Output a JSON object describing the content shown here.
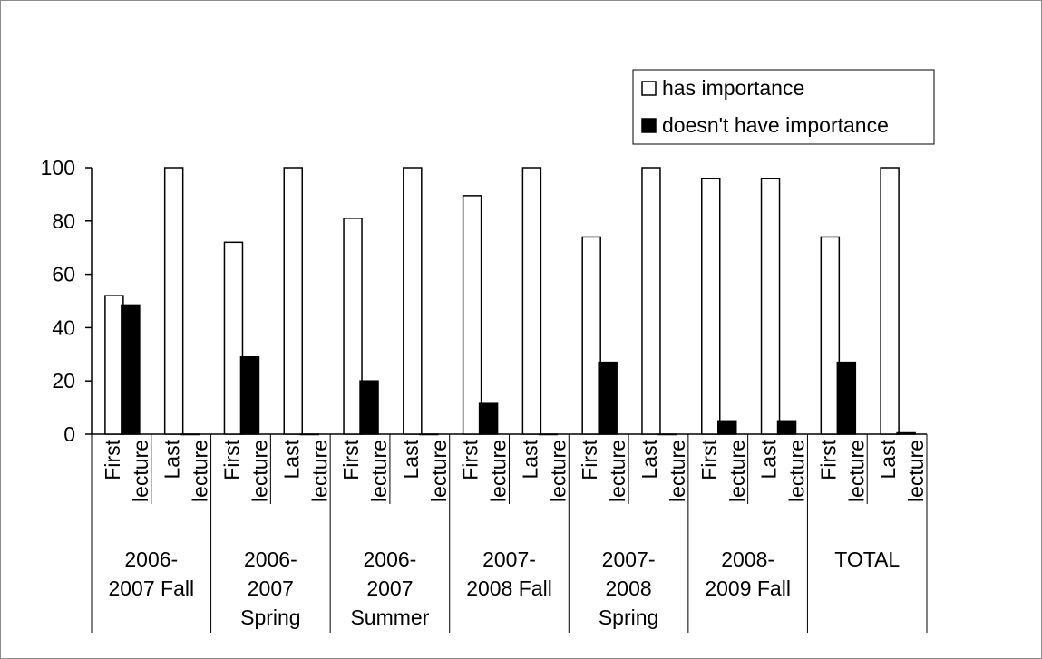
{
  "chart_data": {
    "type": "bar",
    "ylim": [
      0,
      100
    ],
    "yticks": [
      0,
      20,
      40,
      60,
      80,
      100
    ],
    "groups": [
      {
        "label_lines": [
          "2006-",
          "2007 Fall"
        ],
        "subcategories": [
          {
            "line1": "First",
            "line2": "lecture"
          },
          {
            "line1": "Last",
            "line2": "lecture"
          }
        ]
      },
      {
        "label_lines": [
          "2006-",
          "2007",
          "Spring"
        ],
        "subcategories": [
          {
            "line1": "First",
            "line2": "lecture"
          },
          {
            "line1": "Last",
            "line2": "lecture"
          }
        ]
      },
      {
        "label_lines": [
          "2006-",
          "2007",
          "Summer"
        ],
        "subcategories": [
          {
            "line1": "First",
            "line2": "lecture"
          },
          {
            "line1": "Last",
            "line2": "lecture"
          }
        ]
      },
      {
        "label_lines": [
          "2007-",
          "2008 Fall"
        ],
        "subcategories": [
          {
            "line1": "First",
            "line2": "lecture"
          },
          {
            "line1": "Last",
            "line2": "lecture"
          }
        ]
      },
      {
        "label_lines": [
          "2007-",
          "2008",
          "Spring"
        ],
        "subcategories": [
          {
            "line1": "First",
            "line2": "lecture"
          },
          {
            "line1": "Last",
            "line2": "lecture"
          }
        ]
      },
      {
        "label_lines": [
          "2008-",
          "2009 Fall"
        ],
        "subcategories": [
          {
            "line1": "First",
            "line2": "lecture"
          },
          {
            "line1": "Last",
            "line2": "lecture"
          }
        ]
      },
      {
        "label_lines": [
          "TOTAL"
        ],
        "subcategories": [
          {
            "line1": "First",
            "line2": "lecture"
          },
          {
            "line1": "Last",
            "line2": "lecture"
          }
        ]
      }
    ],
    "series": [
      {
        "name": "has importance",
        "color": "#ffffff",
        "values": [
          52,
          100,
          72,
          100,
          81,
          100,
          89.5,
          100,
          74,
          100,
          96,
          96,
          74,
          100
        ]
      },
      {
        "name": "doesn't have importance",
        "color": "#000000",
        "values": [
          48.5,
          0,
          29,
          0,
          20,
          0,
          11.5,
          0,
          27,
          0,
          5,
          5,
          27,
          0.5
        ]
      }
    ],
    "legend_position": "top-right",
    "grid": false
  }
}
